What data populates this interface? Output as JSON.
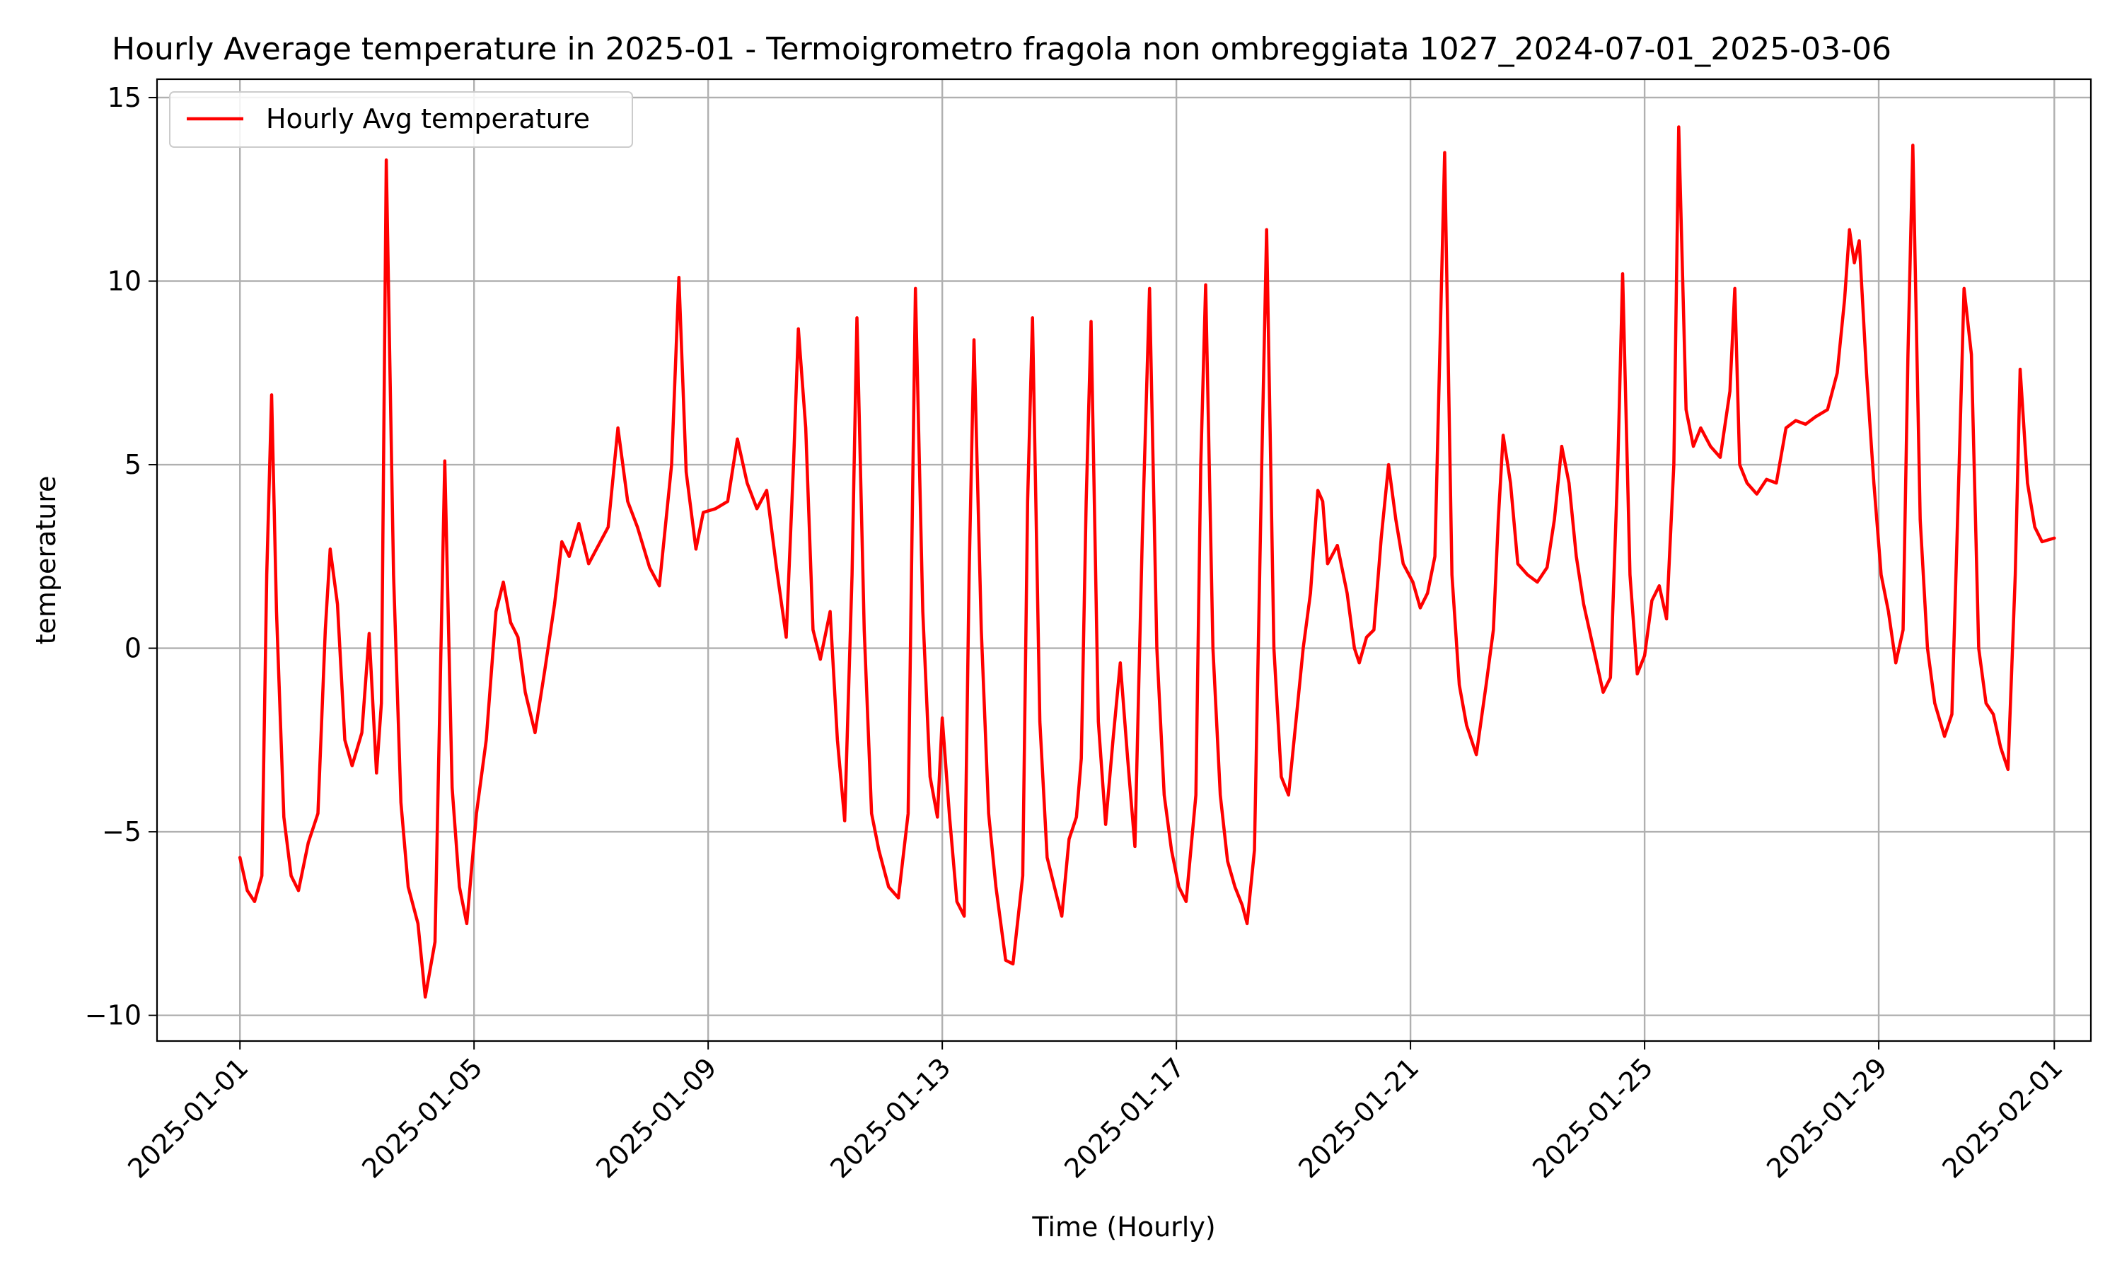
{
  "chart_data": {
    "type": "line",
    "title": "Hourly Average temperature in 2025-01 - Termoigrometro fragola non ombreggiata 1027_2024-07-01_2025-03-06",
    "xlabel": "Time (Hourly)",
    "ylabel": "temperature",
    "xlim": [
      "2024-12-30T14:00",
      "2025-02-01T15:00"
    ],
    "ylim": [
      -10.7,
      15.5
    ],
    "x_ticks": [
      "2025-01-01",
      "2025-01-05",
      "2025-01-09",
      "2025-01-13",
      "2025-01-17",
      "2025-01-21",
      "2025-01-25",
      "2025-01-29",
      "2025-02-01"
    ],
    "y_ticks": [
      -10,
      -5,
      0,
      5,
      10,
      15
    ],
    "y_tick_labels": [
      "−10",
      "−5",
      "0",
      "5",
      "10",
      "15"
    ],
    "grid": true,
    "legend_position": "top-left",
    "series": [
      {
        "name": "Hourly Avg temperature",
        "color": "#ff0000",
        "points": [
          [
            "2025-01-01T00:00",
            -5.7
          ],
          [
            "2025-01-01T03:00",
            -6.6
          ],
          [
            "2025-01-01T06:00",
            -6.9
          ],
          [
            "2025-01-01T09:00",
            -6.2
          ],
          [
            "2025-01-01T11:00",
            2.0
          ],
          [
            "2025-01-01T13:00",
            6.9
          ],
          [
            "2025-01-01T15:00",
            1.0
          ],
          [
            "2025-01-01T18:00",
            -4.6
          ],
          [
            "2025-01-01T21:00",
            -6.2
          ],
          [
            "2025-01-02T00:00",
            -6.6
          ],
          [
            "2025-01-02T04:00",
            -5.3
          ],
          [
            "2025-01-02T08:00",
            -4.5
          ],
          [
            "2025-01-02T11:00",
            0.5
          ],
          [
            "2025-01-02T13:00",
            2.7
          ],
          [
            "2025-01-02T16:00",
            1.2
          ],
          [
            "2025-01-02T19:00",
            -2.5
          ],
          [
            "2025-01-02T22:00",
            -3.2
          ],
          [
            "2025-01-03T02:00",
            -2.3
          ],
          [
            "2025-01-03T05:00",
            0.4
          ],
          [
            "2025-01-03T08:00",
            -3.4
          ],
          [
            "2025-01-03T10:00",
            -1.5
          ],
          [
            "2025-01-03T12:00",
            13.3
          ],
          [
            "2025-01-03T15:00",
            2.0
          ],
          [
            "2025-01-03T18:00",
            -4.2
          ],
          [
            "2025-01-03T21:00",
            -6.5
          ],
          [
            "2025-01-04T01:00",
            -7.5
          ],
          [
            "2025-01-04T04:00",
            -9.5
          ],
          [
            "2025-01-04T08:00",
            -8.0
          ],
          [
            "2025-01-04T12:00",
            5.1
          ],
          [
            "2025-01-04T15:00",
            -3.8
          ],
          [
            "2025-01-04T18:00",
            -6.5
          ],
          [
            "2025-01-04T21:00",
            -7.5
          ],
          [
            "2025-01-05T01:00",
            -4.5
          ],
          [
            "2025-01-05T05:00",
            -2.5
          ],
          [
            "2025-01-05T09:00",
            1.0
          ],
          [
            "2025-01-05T12:00",
            1.8
          ],
          [
            "2025-01-05T15:00",
            0.7
          ],
          [
            "2025-01-05T18:00",
            0.3
          ],
          [
            "2025-01-05T21:00",
            -1.2
          ],
          [
            "2025-01-06T01:00",
            -2.3
          ],
          [
            "2025-01-06T05:00",
            -0.6
          ],
          [
            "2025-01-06T09:00",
            1.2
          ],
          [
            "2025-01-06T12:00",
            2.9
          ],
          [
            "2025-01-06T15:00",
            2.5
          ],
          [
            "2025-01-06T19:00",
            3.4
          ],
          [
            "2025-01-06T23:00",
            2.3
          ],
          [
            "2025-01-07T03:00",
            2.8
          ],
          [
            "2025-01-07T07:00",
            3.3
          ],
          [
            "2025-01-07T11:00",
            6.0
          ],
          [
            "2025-01-07T15:00",
            4.0
          ],
          [
            "2025-01-07T19:00",
            3.3
          ],
          [
            "2025-01-08T00:00",
            2.2
          ],
          [
            "2025-01-08T04:00",
            1.7
          ],
          [
            "2025-01-08T09:00",
            5.0
          ],
          [
            "2025-01-08T12:00",
            10.1
          ],
          [
            "2025-01-08T15:00",
            4.8
          ],
          [
            "2025-01-08T19:00",
            2.7
          ],
          [
            "2025-01-08T22:00",
            3.7
          ],
          [
            "2025-01-09T03:00",
            3.8
          ],
          [
            "2025-01-09T08:00",
            4.0
          ],
          [
            "2025-01-09T12:00",
            5.7
          ],
          [
            "2025-01-09T16:00",
            4.5
          ],
          [
            "2025-01-09T20:00",
            3.8
          ],
          [
            "2025-01-10T00:00",
            4.3
          ],
          [
            "2025-01-10T04:00",
            2.2
          ],
          [
            "2025-01-10T08:00",
            0.3
          ],
          [
            "2025-01-10T11:00",
            5.0
          ],
          [
            "2025-01-10T13:00",
            8.7
          ],
          [
            "2025-01-10T16:00",
            6.0
          ],
          [
            "2025-01-10T19:00",
            0.5
          ],
          [
            "2025-01-10T22:00",
            -0.3
          ],
          [
            "2025-01-11T02:00",
            1.0
          ],
          [
            "2025-01-11T05:00",
            -2.5
          ],
          [
            "2025-01-11T08:00",
            -4.7
          ],
          [
            "2025-01-11T11:00",
            2.0
          ],
          [
            "2025-01-11T13:00",
            9.0
          ],
          [
            "2025-01-11T16:00",
            0.5
          ],
          [
            "2025-01-11T19:00",
            -4.5
          ],
          [
            "2025-01-11T22:00",
            -5.5
          ],
          [
            "2025-01-12T02:00",
            -6.5
          ],
          [
            "2025-01-12T06:00",
            -6.8
          ],
          [
            "2025-01-12T10:00",
            -4.5
          ],
          [
            "2025-01-12T13:00",
            9.8
          ],
          [
            "2025-01-12T16:00",
            1.0
          ],
          [
            "2025-01-12T19:00",
            -3.5
          ],
          [
            "2025-01-12T22:00",
            -4.6
          ],
          [
            "2025-01-13T00:00",
            -1.9
          ],
          [
            "2025-01-13T03:00",
            -4.6
          ],
          [
            "2025-01-13T06:00",
            -6.9
          ],
          [
            "2025-01-13T09:00",
            -7.3
          ],
          [
            "2025-01-13T11:00",
            2.0
          ],
          [
            "2025-01-13T13:00",
            8.4
          ],
          [
            "2025-01-13T16:00",
            0.5
          ],
          [
            "2025-01-13T19:00",
            -4.5
          ],
          [
            "2025-01-13T22:00",
            -6.5
          ],
          [
            "2025-01-14T02:00",
            -8.5
          ],
          [
            "2025-01-14T05:00",
            -8.6
          ],
          [
            "2025-01-14T09:00",
            -6.2
          ],
          [
            "2025-01-14T11:00",
            4.0
          ],
          [
            "2025-01-14T13:00",
            9.0
          ],
          [
            "2025-01-14T16:00",
            -2.0
          ],
          [
            "2025-01-14T19:00",
            -5.7
          ],
          [
            "2025-01-14T22:00",
            -6.5
          ],
          [
            "2025-01-15T01:00",
            -7.3
          ],
          [
            "2025-01-15T04:00",
            -5.2
          ],
          [
            "2025-01-15T07:00",
            -4.6
          ],
          [
            "2025-01-15T09:00",
            -3.0
          ],
          [
            "2025-01-15T11:00",
            4.0
          ],
          [
            "2025-01-15T13:00",
            8.9
          ],
          [
            "2025-01-15T16:00",
            -2.0
          ],
          [
            "2025-01-15T19:00",
            -4.8
          ],
          [
            "2025-01-15T22:00",
            -2.5
          ],
          [
            "2025-01-16T01:00",
            -0.4
          ],
          [
            "2025-01-16T04:00",
            -3.0
          ],
          [
            "2025-01-16T07:00",
            -5.4
          ],
          [
            "2025-01-16T10:00",
            3.0
          ],
          [
            "2025-01-16T13:00",
            9.8
          ],
          [
            "2025-01-16T16:00",
            0.0
          ],
          [
            "2025-01-16T19:00",
            -4.0
          ],
          [
            "2025-01-16T22:00",
            -5.5
          ],
          [
            "2025-01-17T01:00",
            -6.5
          ],
          [
            "2025-01-17T04:00",
            -6.9
          ],
          [
            "2025-01-17T08:00",
            -4.0
          ],
          [
            "2025-01-17T10:00",
            5.0
          ],
          [
            "2025-01-17T12:00",
            9.9
          ],
          [
            "2025-01-17T15:00",
            0.0
          ],
          [
            "2025-01-17T18:00",
            -4.0
          ],
          [
            "2025-01-17T21:00",
            -5.8
          ],
          [
            "2025-01-18T00:00",
            -6.5
          ],
          [
            "2025-01-18T03:00",
            -7.0
          ],
          [
            "2025-01-18T05:00",
            -7.5
          ],
          [
            "2025-01-18T08:00",
            -5.5
          ],
          [
            "2025-01-18T11:00",
            5.0
          ],
          [
            "2025-01-18T13:00",
            11.4
          ],
          [
            "2025-01-18T16:00",
            0.0
          ],
          [
            "2025-01-18T19:00",
            -3.5
          ],
          [
            "2025-01-18T22:00",
            -4.0
          ],
          [
            "2025-01-19T01:00",
            -2.0
          ],
          [
            "2025-01-19T04:00",
            0.0
          ],
          [
            "2025-01-19T07:00",
            1.5
          ],
          [
            "2025-01-19T10:00",
            4.3
          ],
          [
            "2025-01-19T12:00",
            4.0
          ],
          [
            "2025-01-19T14:00",
            2.3
          ],
          [
            "2025-01-19T18:00",
            2.8
          ],
          [
            "2025-01-19T22:00",
            1.5
          ],
          [
            "2025-01-20T01:00",
            0.0
          ],
          [
            "2025-01-20T03:00",
            -0.4
          ],
          [
            "2025-01-20T06:00",
            0.3
          ],
          [
            "2025-01-20T09:00",
            0.5
          ],
          [
            "2025-01-20T12:00",
            3.0
          ],
          [
            "2025-01-20T15:00",
            5.0
          ],
          [
            "2025-01-20T18:00",
            3.5
          ],
          [
            "2025-01-20T21:00",
            2.3
          ],
          [
            "2025-01-21T01:00",
            1.8
          ],
          [
            "2025-01-21T04:00",
            1.1
          ],
          [
            "2025-01-21T07:00",
            1.5
          ],
          [
            "2025-01-21T10:00",
            2.5
          ],
          [
            "2025-01-21T12:00",
            8.0
          ],
          [
            "2025-01-21T14:00",
            13.5
          ],
          [
            "2025-01-21T17:00",
            2.0
          ],
          [
            "2025-01-21T20:00",
            -1.0
          ],
          [
            "2025-01-21T23:00",
            -2.1
          ],
          [
            "2025-01-22T03:00",
            -2.9
          ],
          [
            "2025-01-22T07:00",
            -1.0
          ],
          [
            "2025-01-22T10:00",
            0.5
          ],
          [
            "2025-01-22T12:00",
            3.5
          ],
          [
            "2025-01-22T14:00",
            5.8
          ],
          [
            "2025-01-22T17:00",
            4.5
          ],
          [
            "2025-01-22T20:00",
            2.3
          ],
          [
            "2025-01-23T00:00",
            2.0
          ],
          [
            "2025-01-23T04:00",
            1.8
          ],
          [
            "2025-01-23T08:00",
            2.2
          ],
          [
            "2025-01-23T11:00",
            3.5
          ],
          [
            "2025-01-23T14:00",
            5.5
          ],
          [
            "2025-01-23T17:00",
            4.5
          ],
          [
            "2025-01-23T20:00",
            2.5
          ],
          [
            "2025-01-23T23:00",
            1.2
          ],
          [
            "2025-01-24T03:00",
            0.0
          ],
          [
            "2025-01-24T07:00",
            -1.2
          ],
          [
            "2025-01-24T10:00",
            -0.8
          ],
          [
            "2025-01-24T13:00",
            5.0
          ],
          [
            "2025-01-24T15:00",
            10.2
          ],
          [
            "2025-01-24T18:00",
            2.0
          ],
          [
            "2025-01-24T21:00",
            -0.7
          ],
          [
            "2025-01-25T00:00",
            -0.2
          ],
          [
            "2025-01-25T03:00",
            1.3
          ],
          [
            "2025-01-25T06:00",
            1.7
          ],
          [
            "2025-01-25T09:00",
            0.8
          ],
          [
            "2025-01-25T12:00",
            5.0
          ],
          [
            "2025-01-25T14:00",
            14.2
          ],
          [
            "2025-01-25T17:00",
            6.5
          ],
          [
            "2025-01-25T20:00",
            5.5
          ],
          [
            "2025-01-25T23:00",
            6.0
          ],
          [
            "2025-01-26T03:00",
            5.5
          ],
          [
            "2025-01-26T07:00",
            5.2
          ],
          [
            "2025-01-26T11:00",
            7.0
          ],
          [
            "2025-01-26T13:00",
            9.8
          ],
          [
            "2025-01-26T15:00",
            5.0
          ],
          [
            "2025-01-26T18:00",
            4.5
          ],
          [
            "2025-01-26T22:00",
            4.2
          ],
          [
            "2025-01-27T02:00",
            4.6
          ],
          [
            "2025-01-27T06:00",
            4.5
          ],
          [
            "2025-01-27T10:00",
            6.0
          ],
          [
            "2025-01-27T14:00",
            6.2
          ],
          [
            "2025-01-27T18:00",
            6.1
          ],
          [
            "2025-01-27T22:00",
            6.3
          ],
          [
            "2025-01-28T03:00",
            6.5
          ],
          [
            "2025-01-28T07:00",
            7.5
          ],
          [
            "2025-01-28T10:00",
            9.5
          ],
          [
            "2025-01-28T12:00",
            11.4
          ],
          [
            "2025-01-28T14:00",
            10.5
          ],
          [
            "2025-01-28T16:00",
            11.1
          ],
          [
            "2025-01-28T19:00",
            7.5
          ],
          [
            "2025-01-28T22:00",
            4.5
          ],
          [
            "2025-01-29T01:00",
            2.0
          ],
          [
            "2025-01-29T04:00",
            1.0
          ],
          [
            "2025-01-29T07:00",
            -0.4
          ],
          [
            "2025-01-29T10:00",
            0.5
          ],
          [
            "2025-01-29T12:00",
            8.0
          ],
          [
            "2025-01-29T14:00",
            13.7
          ],
          [
            "2025-01-29T17:00",
            3.5
          ],
          [
            "2025-01-29T20:00",
            0.0
          ],
          [
            "2025-01-29T23:00",
            -1.5
          ],
          [
            "2025-01-30T03:00",
            -2.4
          ],
          [
            "2025-01-30T06:00",
            -1.8
          ],
          [
            "2025-01-30T09:00",
            5.0
          ],
          [
            "2025-01-30T11:00",
            9.8
          ],
          [
            "2025-01-30T14:00",
            8.0
          ],
          [
            "2025-01-30T17:00",
            0.0
          ],
          [
            "2025-01-30T20:00",
            -1.5
          ],
          [
            "2025-01-30T23:00",
            -1.8
          ],
          [
            "2025-01-31T02:00",
            -2.7
          ],
          [
            "2025-01-31T05:00",
            -3.3
          ],
          [
            "2025-01-31T08:00",
            2.0
          ],
          [
            "2025-01-31T10:00",
            7.6
          ],
          [
            "2025-01-31T13:00",
            4.5
          ],
          [
            "2025-01-31T16:00",
            3.3
          ],
          [
            "2025-01-31T19:00",
            2.9
          ],
          [
            "2025-02-01T00:00",
            3.0
          ]
        ]
      }
    ]
  }
}
